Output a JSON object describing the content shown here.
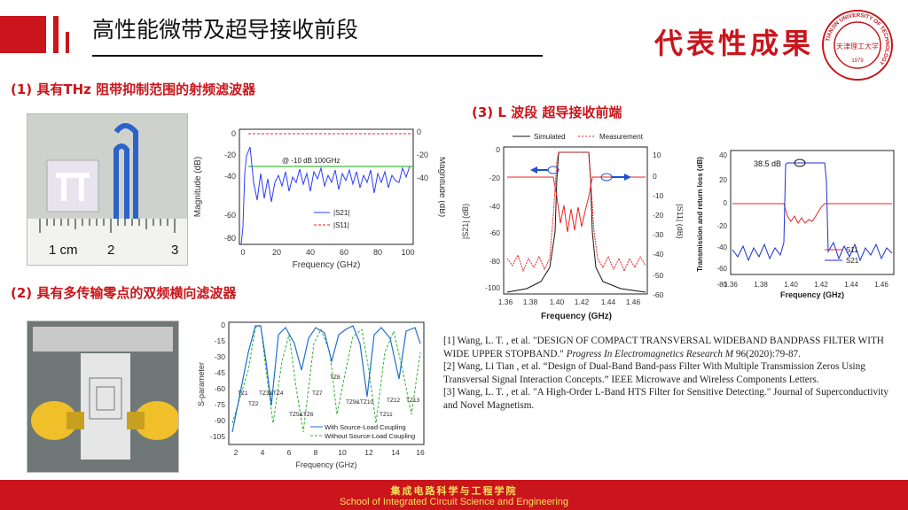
{
  "header": {
    "title": "高性能微带及超导接收前段",
    "deliverable_label": "代表性成果",
    "logo_ring_text": "TIANJIN UNIVERSITY OF TECHNOLOGY",
    "logo_center_text": "天津理工大学",
    "logo_year": "1979"
  },
  "sections": {
    "s1": "(1) 具有THz 阻带抑制范围的射频滤波器",
    "s2": "(2) 具有多传输零点的双频横向滤波器",
    "s3": "(3) L 波段 超导接收前端"
  },
  "photo1": {
    "ruler_labels": [
      "1 cm",
      "2",
      "3"
    ]
  },
  "chart1": {
    "type": "line",
    "xlabel": "Frequency (GHz)",
    "ylabel_left": "Magnitude (dB)",
    "ylabel_right": "Magnitude (dB)",
    "x_ticks": [
      "0",
      "20",
      "40",
      "60",
      "80",
      "100"
    ],
    "y_left_ticks": [
      "0",
      "-20",
      "-40",
      "-60",
      "-80"
    ],
    "y_right_ticks": [
      "0",
      "-20",
      "-40"
    ],
    "annotation": "@ -10 dB 100GHz",
    "legend": [
      "|S21|",
      "|S11|"
    ],
    "colors": {
      "s21": "#2a3cff",
      "s11": "#ee2222",
      "marker": "#3fbf3f"
    }
  },
  "chart2": {
    "type": "line",
    "ylabel": "S-parameter",
    "xlabel": "Frequency (GHz)",
    "x_ticks": [
      "2",
      "4",
      "6",
      "8",
      "10",
      "12",
      "14",
      "16"
    ],
    "y_ticks": [
      "0",
      "-15",
      "-30",
      "-45",
      "-60",
      "-75",
      "-90",
      "-105"
    ],
    "tz_labels": [
      "TZ1",
      "TZ2",
      "TZ3&TZ4",
      "TZ5&TZ6",
      "TZ7",
      "TZ8",
      "TZ9&TZ10",
      "TZ11",
      "TZ12",
      "TZ13"
    ],
    "legend": [
      "With Source-Load Coupling",
      "Without Source-Load Coupling"
    ],
    "colors": {
      "with": "#1f6fd1",
      "without": "#2fb02f"
    }
  },
  "chart3": {
    "type": "line",
    "legend": [
      "Simulated",
      "Measurement"
    ],
    "xlabel": "Frequency (GHz)",
    "ylabel_left": "|S21| (dB)",
    "ylabel_right": "|S11| (dB)",
    "x_ticks": [
      "1.36",
      "1.38",
      "1.40",
      "1.42",
      "1.44",
      "1.46"
    ],
    "y_left_ticks": [
      "0",
      "-20",
      "-40",
      "-60",
      "-80",
      "-100"
    ],
    "y_right_ticks": [
      "10",
      "0",
      "-10",
      "-20",
      "-30",
      "-40",
      "-50",
      "-60"
    ]
  },
  "chart4": {
    "type": "line",
    "ylabel": "Transmission and return loss (dB)",
    "xlabel": "Frequency (GHz)",
    "x_ticks": [
      "1.36",
      "1.38",
      "1.40",
      "1.42",
      "1.44",
      "1.46"
    ],
    "y_ticks": [
      "40",
      "20",
      "0",
      "-20",
      "-40",
      "-60",
      "-80"
    ],
    "annotation": "38.5 dB",
    "legend": [
      "S11",
      "S21"
    ]
  },
  "references": {
    "r1_a": "[1] Wang, L. T. , et al. \"DESIGN OF COMPACT TRANSVERSAL WIDEBAND BANDPASS FILTER WITH WIDE UPPER STOPBAND.\" ",
    "r1_j": "Progress In Electromagnetics Research M",
    "r1_b": " 96(2020):79-87.",
    "r2": "[2] Wang, Li Tian , et al. “Design of Dual-Band Band-pass Filter With Multiple Transmission Zeros Using Transversal Signal Interaction Concepts.” IEEE Microwave and Wireless Components Letters.",
    "r3": "[3] Wang, L. T. , et al. \"A High-Order L-Band HTS Filter for Sensitive Detecting.\" Journal of Superconductivity and Novel Magnetism."
  },
  "footer": {
    "cn": "集成电路科学与工程学院",
    "en": "School of Integrated Circuit Science and Engineering"
  }
}
